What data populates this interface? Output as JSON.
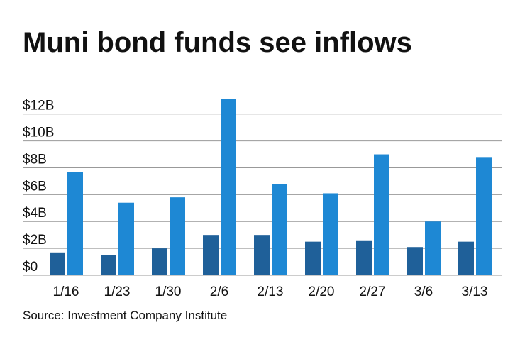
{
  "chart_data": {
    "type": "bar",
    "title": "Muni bond funds see inflows",
    "categories": [
      "1/16",
      "1/23",
      "1/30",
      "2/6",
      "2/13",
      "2/20",
      "2/27",
      "3/6",
      "3/13"
    ],
    "series": [
      {
        "color": "#1f6099",
        "values": [
          1.7,
          1.5,
          2.0,
          3.0,
          3.0,
          2.5,
          2.6,
          2.1,
          2.5
        ]
      },
      {
        "color": "#1e88d4",
        "values": [
          7.7,
          5.4,
          5.8,
          13.1,
          6.8,
          6.1,
          9.0,
          4.0,
          8.8
        ]
      }
    ],
    "ylim": [
      0,
      13.2
    ],
    "yticks": [
      {
        "value": 0,
        "label": "$0"
      },
      {
        "value": 2,
        "label": "$2B"
      },
      {
        "value": 4,
        "label": "$4B"
      },
      {
        "value": 6,
        "label": "$6B"
      },
      {
        "value": 8,
        "label": "$8B"
      },
      {
        "value": 10,
        "label": "$10B"
      },
      {
        "value": 12,
        "label": "$12B"
      }
    ],
    "grid": true,
    "source": "Source: Investment Company Institute"
  }
}
